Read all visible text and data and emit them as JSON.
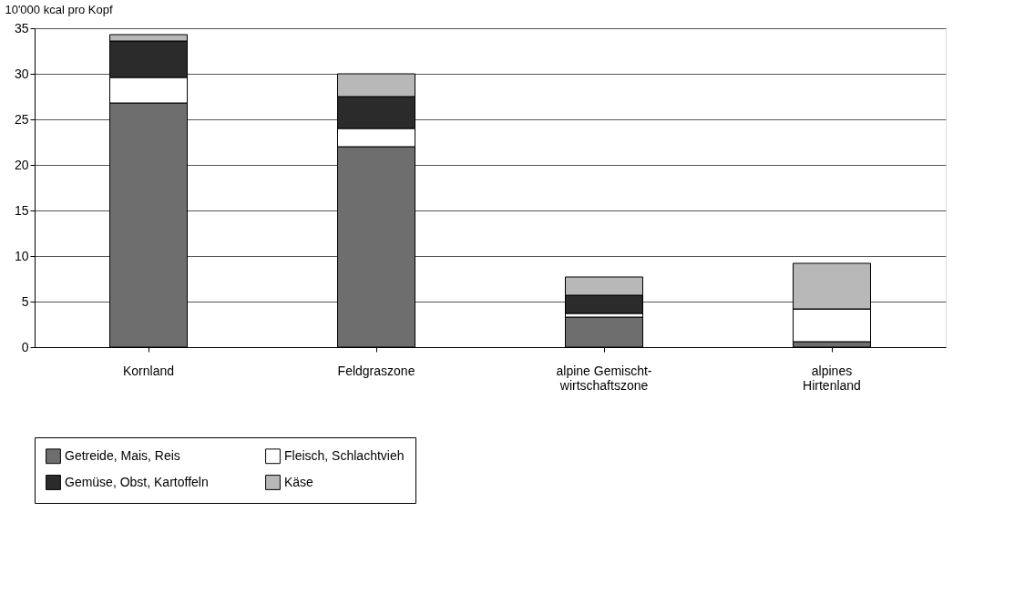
{
  "chart_data": {
    "type": "bar",
    "stacked": true,
    "ylabel": "10'000 kcal pro Kopf",
    "categories": [
      "Kornland",
      "Feldgraszone",
      "alpine Gemischt-\nwirtschaftszone",
      "alpines\nHirtenland"
    ],
    "series": [
      {
        "name": "Getreide, Mais, Reis",
        "color": "#6e6e6e",
        "values": [
          26.8,
          22,
          3.3,
          0.6
        ]
      },
      {
        "name": "Fleisch, Schlachtvieh",
        "color": "#ffffff",
        "values": [
          2.8,
          2,
          0.4,
          3.6
        ]
      },
      {
        "name": "Gemüse, Obst, Kartoffeln",
        "color": "#2b2b2b",
        "values": [
          4.0,
          3.5,
          2.0,
          0
        ]
      },
      {
        "name": "Käse",
        "color": "#b8b8b8",
        "values": [
          0.7,
          2.5,
          2.0,
          5.0
        ]
      }
    ],
    "ylim": [
      0,
      35
    ],
    "yticks": [
      0,
      5,
      10,
      15,
      20,
      25,
      30,
      35
    ],
    "grid": "y",
    "legend": "bottom"
  }
}
